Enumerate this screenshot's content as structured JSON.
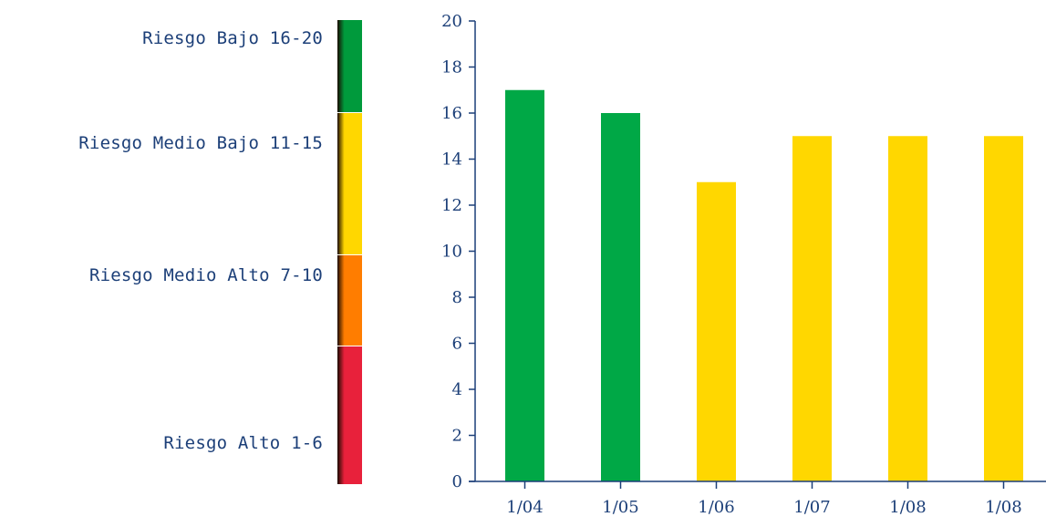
{
  "legend": {
    "items": [
      {
        "label": "Riesgo Bajo 16-20",
        "color": "#009a3c"
      },
      {
        "label": "Riesgo Medio Bajo 11-15",
        "color": "#ffd700"
      },
      {
        "label": "Riesgo Medio Alto 7-10",
        "color": "#ff7d00"
      },
      {
        "label": "Riesgo Alto 1-6",
        "color": "#e8213b"
      }
    ]
  },
  "chart_data": {
    "type": "bar",
    "title": "",
    "xlabel": "",
    "ylabel": "",
    "categories": [
      "1/04",
      "1/05",
      "1/06",
      "1/07",
      "1/08",
      "1/08"
    ],
    "values": [
      17,
      16,
      13,
      15,
      15,
      15
    ],
    "bar_colors": [
      "#00a846",
      "#00a846",
      "#ffd700",
      "#ffd700",
      "#ffd700",
      "#ffd700"
    ],
    "ylim": [
      0,
      20
    ],
    "yticks": [
      0,
      2,
      4,
      6,
      8,
      10,
      12,
      14,
      16,
      18,
      20
    ],
    "grid": false,
    "axis_color": "#1c3f78"
  }
}
